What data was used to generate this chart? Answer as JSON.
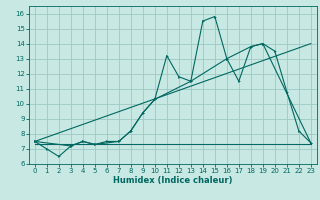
{
  "title": "",
  "xlabel": "Humidex (Indice chaleur)",
  "bg_color": "#c8e8e4",
  "grid_color": "#9dc8c4",
  "line_color": "#006860",
  "xlim": [
    -0.5,
    23.5
  ],
  "ylim": [
    6.0,
    16.5
  ],
  "yticks": [
    6,
    7,
    8,
    9,
    10,
    11,
    12,
    13,
    14,
    15,
    16
  ],
  "xticks": [
    0,
    1,
    2,
    3,
    4,
    5,
    6,
    7,
    8,
    9,
    10,
    11,
    12,
    13,
    14,
    15,
    16,
    17,
    18,
    19,
    20,
    21,
    22,
    23
  ],
  "series_main": [
    [
      0,
      7.5
    ],
    [
      1,
      7.0
    ],
    [
      2,
      6.5
    ],
    [
      3,
      7.2
    ],
    [
      4,
      7.5
    ],
    [
      5,
      7.3
    ],
    [
      6,
      7.5
    ],
    [
      7,
      7.5
    ],
    [
      8,
      8.2
    ],
    [
      9,
      9.4
    ],
    [
      10,
      10.3
    ],
    [
      11,
      13.2
    ],
    [
      12,
      11.8
    ],
    [
      13,
      11.5
    ],
    [
      14,
      15.5
    ],
    [
      15,
      15.8
    ],
    [
      16,
      13.0
    ],
    [
      17,
      11.5
    ],
    [
      18,
      13.8
    ],
    [
      19,
      14.0
    ],
    [
      20,
      13.5
    ],
    [
      21,
      10.8
    ],
    [
      22,
      8.2
    ],
    [
      23,
      7.4
    ]
  ],
  "series_smooth": [
    [
      0,
      7.5
    ],
    [
      3,
      7.2
    ],
    [
      4,
      7.5
    ],
    [
      5,
      7.3
    ],
    [
      7,
      7.5
    ],
    [
      8,
      8.2
    ],
    [
      9,
      9.4
    ],
    [
      10,
      10.3
    ],
    [
      13,
      11.5
    ],
    [
      16,
      13.0
    ],
    [
      18,
      13.8
    ],
    [
      19,
      14.0
    ],
    [
      23,
      7.4
    ]
  ],
  "series_flat": [
    [
      0,
      7.3
    ],
    [
      19,
      7.3
    ],
    [
      23,
      7.3
    ]
  ],
  "trend_line": [
    [
      0,
      7.5
    ],
    [
      23,
      14.0
    ]
  ]
}
